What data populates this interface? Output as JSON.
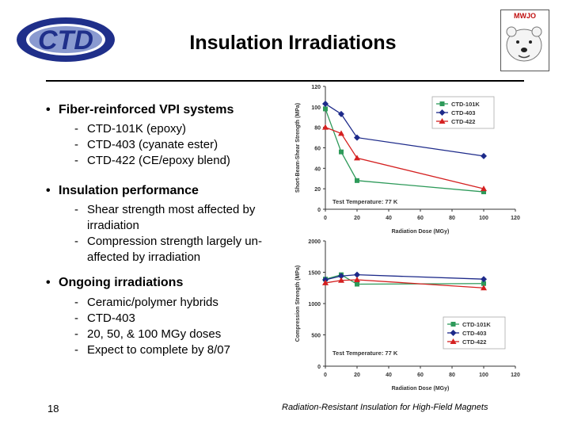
{
  "slide": {
    "title": "Insulation Irradiations",
    "logo_left_text": "CTD",
    "logo_right_text": "MWJO",
    "page_number": "18",
    "footer": "Radiation-Resistant Insulation for High-Field Magnets"
  },
  "bullets": [
    {
      "text": "Fiber-reinforced VPI systems",
      "subs": [
        "CTD-101K (epoxy)",
        "CTD-403 (cyanate ester)",
        "CTD-422 (CE/epoxy blend)"
      ]
    },
    {
      "text": "Insulation performance",
      "subs": [
        "Shear strength most affected by irradiation",
        "Compression strength largely un-affected by irradiation"
      ]
    },
    {
      "text": "Ongoing irradiations",
      "subs": [
        "Ceramic/polymer hybrids",
        "CTD-403",
        "20, 50, & 100 MGy doses",
        "Expect to complete by 8/07"
      ]
    }
  ],
  "chart_data": [
    {
      "type": "line",
      "ylabel": "Short-Beam-Shear Strength (MPa)",
      "xlabel": "Radiation Dose (MGy)",
      "annotation": "Test Temperature: 77 K",
      "xlim": [
        0,
        120
      ],
      "ylim": [
        0,
        120
      ],
      "xticks": [
        "0",
        "20",
        "40",
        "60",
        "80",
        "100",
        "120"
      ],
      "yticks": [
        "0",
        "20",
        "40",
        "60",
        "80",
        "100",
        "120"
      ],
      "legend_position": "top-right",
      "series": [
        {
          "name": "CTD-101K",
          "color": "#2e9a5a",
          "marker": "square",
          "x": [
            0,
            10,
            20,
            100
          ],
          "values": [
            98,
            56,
            28,
            17
          ]
        },
        {
          "name": "CTD-403",
          "color": "#1d2a8a",
          "marker": "diamond",
          "x": [
            0,
            10,
            20,
            100
          ],
          "values": [
            103,
            93,
            70,
            52
          ]
        },
        {
          "name": "CTD-422",
          "color": "#d42020",
          "marker": "triangle",
          "x": [
            0,
            10,
            20,
            100
          ],
          "values": [
            80,
            74,
            50,
            20
          ]
        }
      ]
    },
    {
      "type": "line",
      "ylabel": "Compression Strength (MPa)",
      "xlabel": "Radiation Dose (MGy)",
      "annotation": "Test Temperature: 77 K",
      "xlim": [
        0,
        120
      ],
      "ylim": [
        0,
        2000
      ],
      "xticks": [
        "0",
        "20",
        "40",
        "60",
        "80",
        "100",
        "120"
      ],
      "yticks": [
        "0",
        "500",
        "1000",
        "1500",
        "2000"
      ],
      "legend_position": "bottom-right",
      "series": [
        {
          "name": "CTD-101K",
          "color": "#2e9a5a",
          "marker": "square",
          "x": [
            0,
            10,
            20,
            100
          ],
          "values": [
            1390,
            1460,
            1310,
            1320
          ]
        },
        {
          "name": "CTD-403",
          "color": "#1d2a8a",
          "marker": "diamond",
          "x": [
            0,
            10,
            20,
            100
          ],
          "values": [
            1380,
            1440,
            1460,
            1390
          ]
        },
        {
          "name": "CTD-422",
          "color": "#d42020",
          "marker": "triangle",
          "x": [
            0,
            10,
            20,
            100
          ],
          "values": [
            1330,
            1370,
            1380,
            1250
          ]
        }
      ]
    }
  ]
}
